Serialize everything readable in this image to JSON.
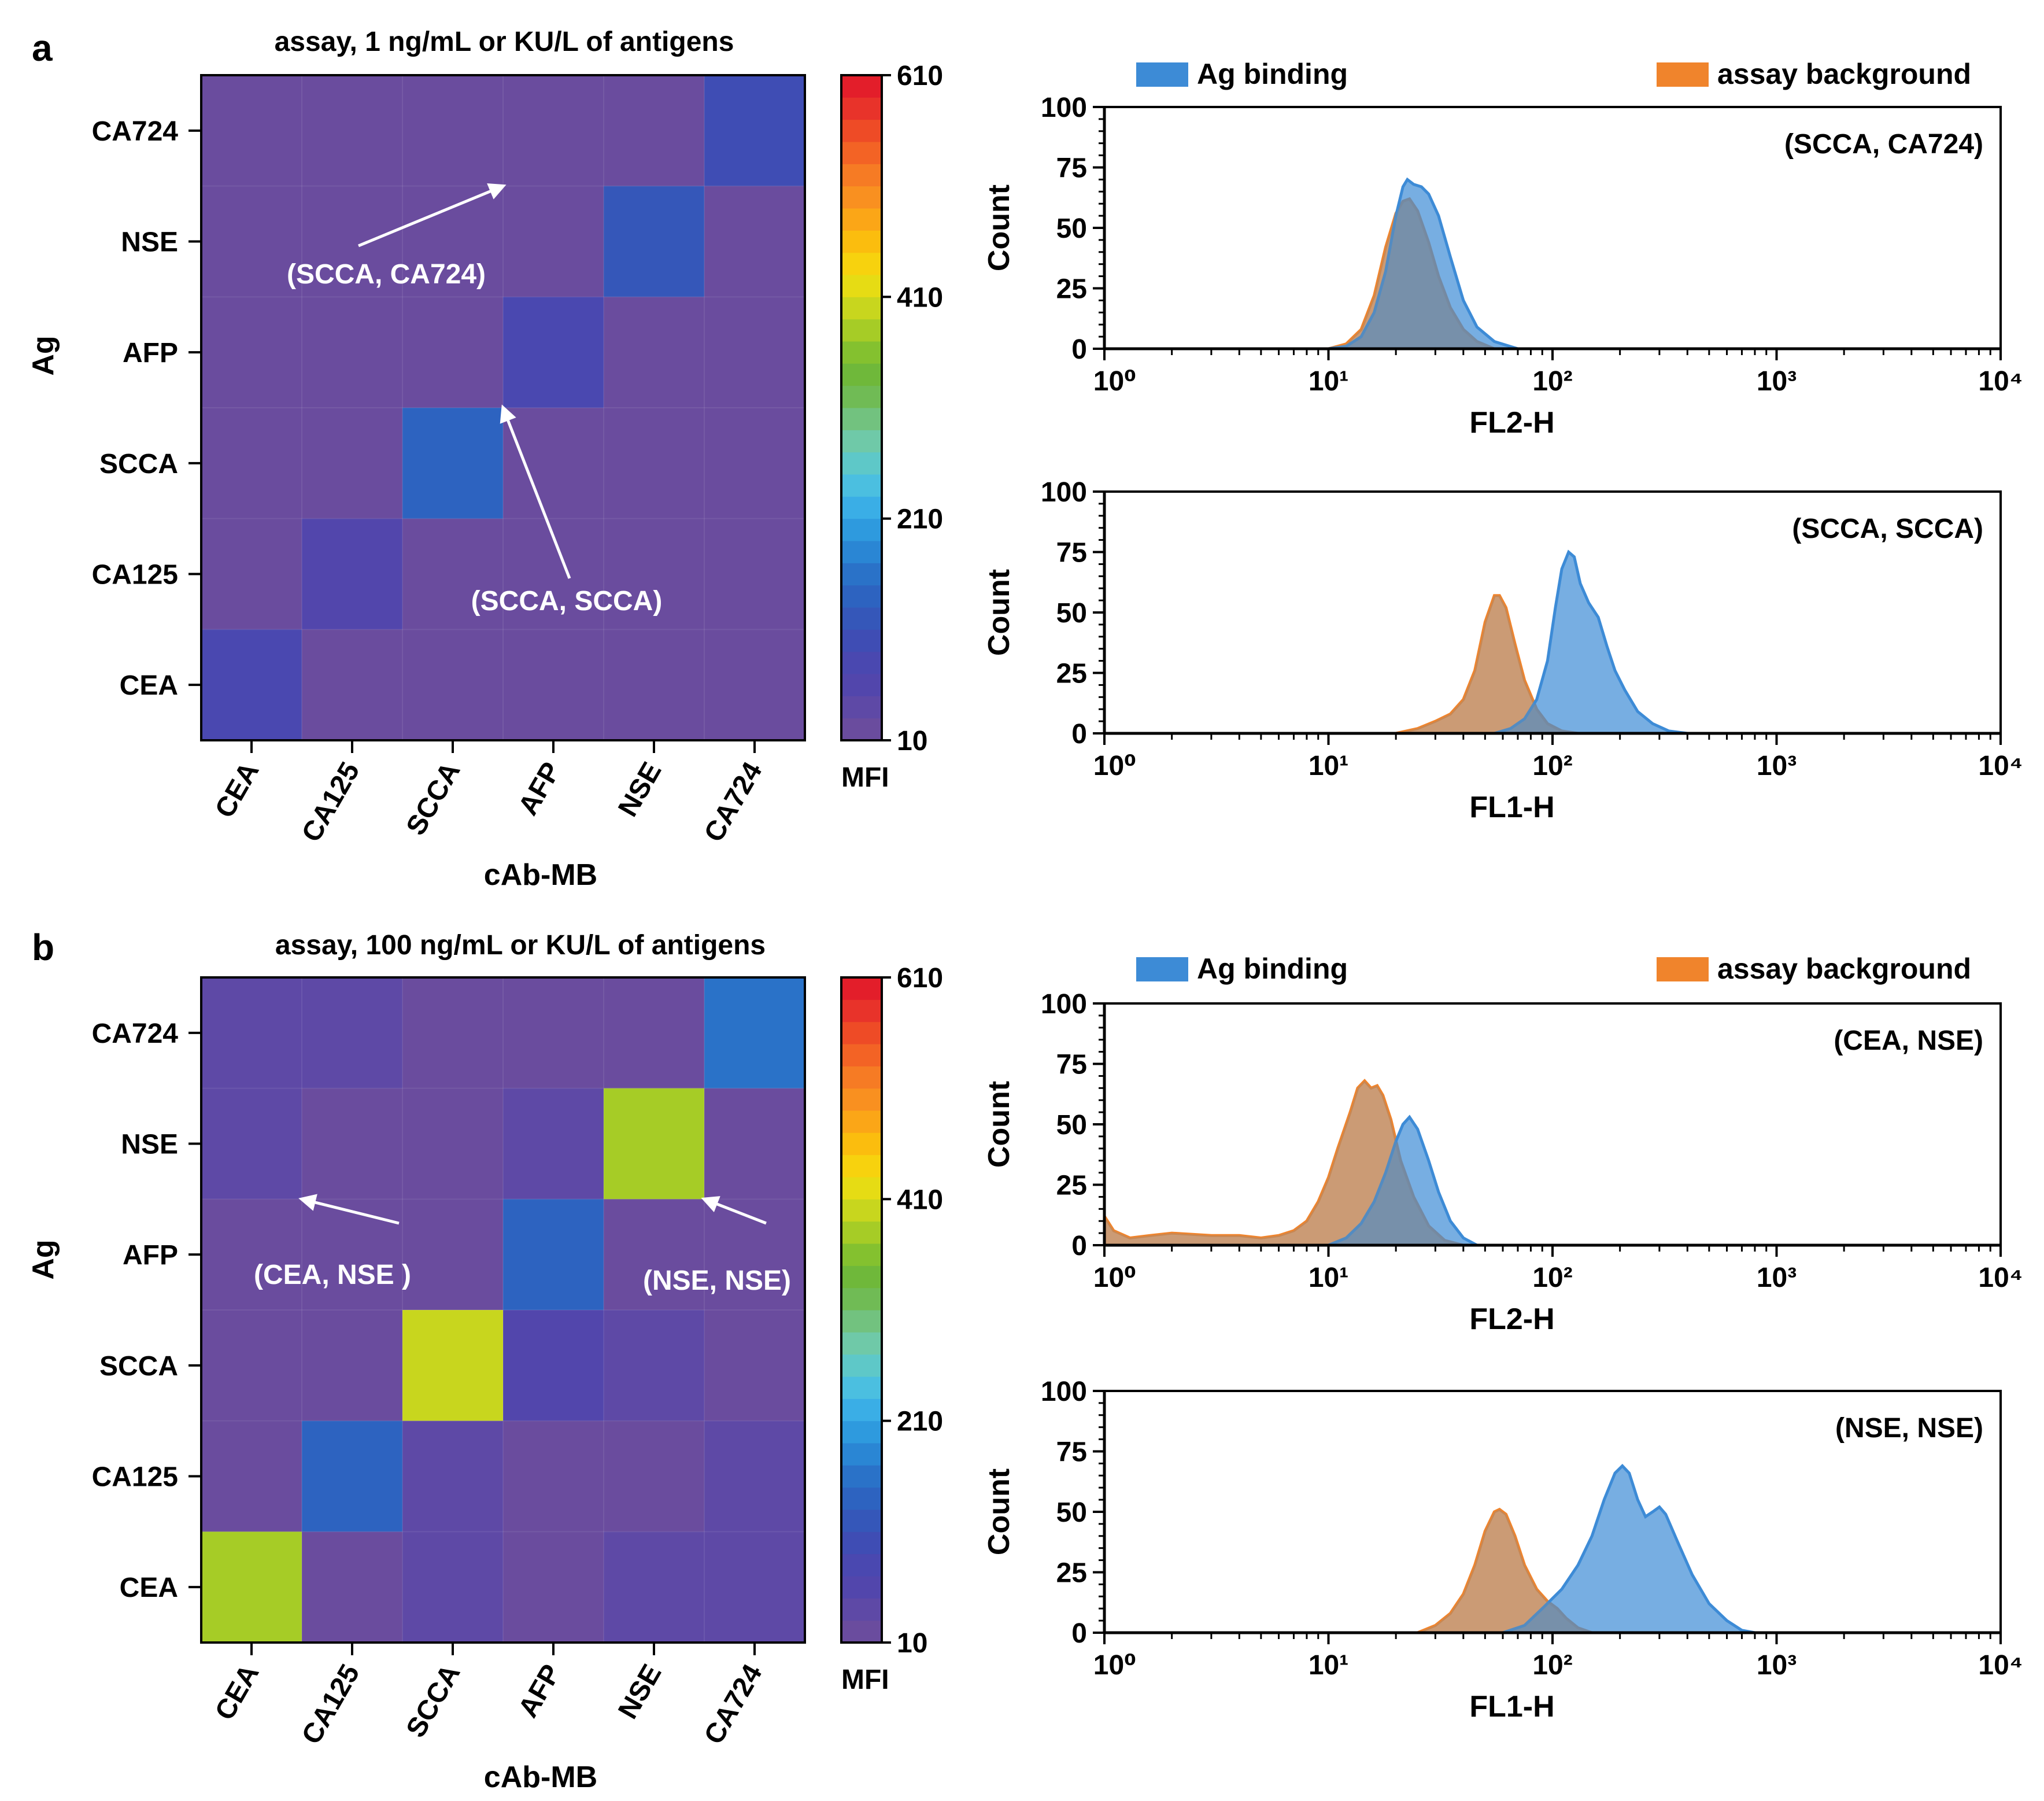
{
  "colors": {
    "ag_binding": "#3d8bd6",
    "assay_background": "#f0842c",
    "overlap": "#7e8c9a",
    "axis": "#000000",
    "annotation": "#ffffff"
  },
  "colormap": [
    "#6a4c9e",
    "#5e49a6",
    "#5246ac",
    "#4a48b0",
    "#3f4db4",
    "#3557b9",
    "#2d63c0",
    "#2a72c8",
    "#2a86d4",
    "#2e9ade",
    "#3aaee6",
    "#4bbfe0",
    "#5ec8c8",
    "#6fc9a8",
    "#72c27f",
    "#70bb55",
    "#6fb83a",
    "#84c12f",
    "#a6cc26",
    "#c8d61e",
    "#e6dc14",
    "#f7d20e",
    "#fbbd0e",
    "#fba617",
    "#f99020",
    "#f67b24",
    "#f36325",
    "#ee4b26",
    "#e8332a",
    "#e31e2a"
  ],
  "chart_data": [
    {
      "panel": "a",
      "type": "heatmap",
      "title": "assay,  1 ng/mL or KU/L of antigens",
      "xlabel": "cAb-MB",
      "ylabel": "Ag",
      "x_categories": [
        "CEA",
        "CA125",
        "SCCA",
        "AFP",
        "NSE",
        "CA724"
      ],
      "y_categories": [
        "CA724",
        "NSE",
        "AFP",
        "SCCA",
        "CA125",
        "CEA"
      ],
      "values": [
        [
          22,
          22,
          22,
          22,
          22,
          95
        ],
        [
          22,
          22,
          22,
          22,
          120,
          22
        ],
        [
          22,
          22,
          22,
          75,
          22,
          22
        ],
        [
          22,
          22,
          135,
          22,
          22,
          22
        ],
        [
          22,
          60,
          22,
          22,
          22,
          22
        ],
        [
          85,
          22,
          22,
          22,
          22,
          22
        ]
      ],
      "colorbar": {
        "label": "MFI",
        "min": 10,
        "max": 610,
        "ticks": [
          "610",
          "410",
          "210",
          "10"
        ]
      },
      "annotations": [
        {
          "text": "(SCCA, CA724)",
          "target": [
            "SCCA",
            "CA724"
          ]
        },
        {
          "text": "(SCCA, SCCA)",
          "target": [
            "SCCA",
            "SCCA"
          ]
        }
      ]
    },
    {
      "panel": "a",
      "type": "area",
      "legend": [
        "Ag binding",
        "assay background"
      ],
      "xlabel": "FL2-H",
      "ylabel": "Count",
      "annotation": "(SCCA, CA724)",
      "xscale": "log",
      "xlim": [
        1,
        10000
      ],
      "ylim": [
        0,
        100
      ],
      "yticks": [
        "0",
        "25",
        "50",
        "75",
        "100"
      ],
      "xticks": [
        "10⁰",
        "10¹",
        "10²",
        "10³",
        "10⁴"
      ],
      "series": [
        {
          "name": "Ag binding",
          "points": [
            [
              10,
              0
            ],
            [
              12,
              1
            ],
            [
              14,
              5
            ],
            [
              16,
              15
            ],
            [
              18,
              32
            ],
            [
              20,
              55
            ],
            [
              21.5,
              67
            ],
            [
              22.5,
              70
            ],
            [
              24,
              68
            ],
            [
              26,
              67
            ],
            [
              28,
              64
            ],
            [
              31,
              55
            ],
            [
              35,
              38
            ],
            [
              40,
              20
            ],
            [
              46,
              9
            ],
            [
              55,
              3
            ],
            [
              70,
              0
            ]
          ]
        },
        {
          "name": "assay background",
          "points": [
            [
              10,
              0
            ],
            [
              12,
              2
            ],
            [
              14,
              8
            ],
            [
              16,
              22
            ],
            [
              18,
              42
            ],
            [
              20,
              56
            ],
            [
              21.5,
              61
            ],
            [
              23,
              62
            ],
            [
              25,
              57
            ],
            [
              28,
              44
            ],
            [
              31,
              30
            ],
            [
              35,
              17
            ],
            [
              40,
              8
            ],
            [
              46,
              3
            ],
            [
              55,
              0
            ]
          ]
        }
      ]
    },
    {
      "panel": "a",
      "type": "area",
      "xlabel": "FL1-H",
      "ylabel": "Count",
      "annotation": "(SCCA, SCCA)",
      "xscale": "log",
      "xlim": [
        1,
        10000
      ],
      "ylim": [
        0,
        100
      ],
      "yticks": [
        "0",
        "25",
        "50",
        "75",
        "100"
      ],
      "xticks": [
        "10⁰",
        "10¹",
        "10²",
        "10³",
        "10⁴"
      ],
      "series": [
        {
          "name": "Ag binding",
          "points": [
            [
              55,
              0
            ],
            [
              65,
              2
            ],
            [
              75,
              6
            ],
            [
              85,
              14
            ],
            [
              95,
              30
            ],
            [
              103,
              52
            ],
            [
              110,
              68
            ],
            [
              118,
              75
            ],
            [
              125,
              73
            ],
            [
              133,
              62
            ],
            [
              145,
              54
            ],
            [
              160,
              48
            ],
            [
              175,
              36
            ],
            [
              190,
              26
            ],
            [
              210,
              18
            ],
            [
              240,
              9
            ],
            [
              280,
              4
            ],
            [
              330,
              1
            ],
            [
              400,
              0
            ]
          ]
        },
        {
          "name": "assay background",
          "points": [
            [
              20,
              0
            ],
            [
              25,
              2
            ],
            [
              30,
              5
            ],
            [
              35,
              8
            ],
            [
              40,
              14
            ],
            [
              45,
              26
            ],
            [
              50,
              46
            ],
            [
              55,
              57
            ],
            [
              58,
              57
            ],
            [
              62,
              52
            ],
            [
              68,
              37
            ],
            [
              75,
              22
            ],
            [
              85,
              10
            ],
            [
              95,
              4
            ],
            [
              110,
              1
            ],
            [
              130,
              0
            ]
          ]
        }
      ]
    },
    {
      "panel": "b",
      "type": "heatmap",
      "title": "assay, 100 ng/mL or KU/L of antigens",
      "xlabel": "cAb-MB",
      "ylabel": "Ag",
      "x_categories": [
        "CEA",
        "CA125",
        "SCCA",
        "AFP",
        "NSE",
        "CA724"
      ],
      "y_categories": [
        "CA724",
        "NSE",
        "AFP",
        "SCCA",
        "CA125",
        "CEA"
      ],
      "values": [
        [
          45,
          45,
          28,
          28,
          28,
          160
        ],
        [
          48,
          28,
          28,
          45,
          380,
          28
        ],
        [
          28,
          28,
          28,
          140,
          28,
          28
        ],
        [
          28,
          28,
          400,
          50,
          35,
          28
        ],
        [
          28,
          140,
          38,
          28,
          28,
          45
        ],
        [
          370,
          28,
          38,
          28,
          35,
          45
        ]
      ],
      "colorbar": {
        "label": "MFI",
        "min": 10,
        "max": 610,
        "ticks": [
          "610",
          "410",
          "210",
          "10"
        ]
      },
      "annotations": [
        {
          "text": "(CEA, NSE )",
          "target": [
            "CEA",
            "NSE"
          ]
        },
        {
          "text": "(NSE, NSE)",
          "target": [
            "NSE",
            "NSE"
          ]
        }
      ]
    },
    {
      "panel": "b",
      "type": "area",
      "legend": [
        "Ag binding",
        "assay background"
      ],
      "xlabel": "FL2-H",
      "ylabel": "Count",
      "annotation": "(CEA, NSE)",
      "xscale": "log",
      "xlim": [
        1,
        10000
      ],
      "ylim": [
        0,
        100
      ],
      "yticks": [
        "0",
        "25",
        "50",
        "75",
        "100"
      ],
      "xticks": [
        "10⁰",
        "10¹",
        "10²",
        "10³",
        "10⁴"
      ],
      "series": [
        {
          "name": "Ag binding",
          "points": [
            [
              10,
              0
            ],
            [
              12,
              3
            ],
            [
              14,
              9
            ],
            [
              16,
              18
            ],
            [
              18,
              30
            ],
            [
              20,
              43
            ],
            [
              21.5,
              50
            ],
            [
              23,
              53
            ],
            [
              25,
              48
            ],
            [
              28,
              35
            ],
            [
              31,
              22
            ],
            [
              35,
              10
            ],
            [
              40,
              3
            ],
            [
              46,
              0
            ]
          ]
        },
        {
          "name": "assay background",
          "points": [
            [
              1,
              12
            ],
            [
              1.1,
              6
            ],
            [
              1.3,
              3
            ],
            [
              1.6,
              4
            ],
            [
              2,
              5
            ],
            [
              3,
              4
            ],
            [
              4,
              4
            ],
            [
              5,
              3
            ],
            [
              6,
              4
            ],
            [
              7,
              6
            ],
            [
              8,
              10
            ],
            [
              9,
              18
            ],
            [
              10,
              28
            ],
            [
              11,
              40
            ],
            [
              12.5,
              55
            ],
            [
              13.5,
              65
            ],
            [
              14.5,
              68
            ],
            [
              15.5,
              65
            ],
            [
              16.5,
              66
            ],
            [
              17.5,
              62
            ],
            [
              19,
              52
            ],
            [
              21,
              35
            ],
            [
              24,
              20
            ],
            [
              28,
              8
            ],
            [
              33,
              2
            ],
            [
              40,
              0
            ]
          ]
        }
      ]
    },
    {
      "panel": "b",
      "type": "area",
      "xlabel": "FL1-H",
      "ylabel": "Count",
      "annotation": "(NSE, NSE)",
      "xscale": "log",
      "xlim": [
        1,
        10000
      ],
      "ylim": [
        0,
        100
      ],
      "yticks": [
        "0",
        "25",
        "50",
        "75",
        "100"
      ],
      "xticks": [
        "10⁰",
        "10¹",
        "10²",
        "10³",
        "10⁴"
      ],
      "series": [
        {
          "name": "Ag binding",
          "points": [
            [
              60,
              0
            ],
            [
              75,
              3
            ],
            [
              90,
              10
            ],
            [
              110,
              18
            ],
            [
              130,
              28
            ],
            [
              150,
              40
            ],
            [
              170,
              55
            ],
            [
              190,
              66
            ],
            [
              205,
              69
            ],
            [
              220,
              66
            ],
            [
              240,
              55
            ],
            [
              260,
              48
            ],
            [
              280,
              50
            ],
            [
              300,
              52
            ],
            [
              320,
              49
            ],
            [
              360,
              38
            ],
            [
              420,
              24
            ],
            [
              500,
              12
            ],
            [
              600,
              5
            ],
            [
              700,
              1
            ],
            [
              800,
              0
            ]
          ]
        },
        {
          "name": "assay background",
          "points": [
            [
              25,
              0
            ],
            [
              30,
              3
            ],
            [
              35,
              8
            ],
            [
              40,
              16
            ],
            [
              45,
              28
            ],
            [
              50,
              42
            ],
            [
              55,
              50
            ],
            [
              58,
              51
            ],
            [
              62,
              49
            ],
            [
              68,
              40
            ],
            [
              75,
              28
            ],
            [
              85,
              18
            ],
            [
              95,
              13
            ],
            [
              105,
              10
            ],
            [
              115,
              6
            ],
            [
              130,
              2
            ],
            [
              150,
              0
            ]
          ]
        }
      ]
    }
  ],
  "labels": {
    "panel_a": "a",
    "panel_b": "b"
  }
}
